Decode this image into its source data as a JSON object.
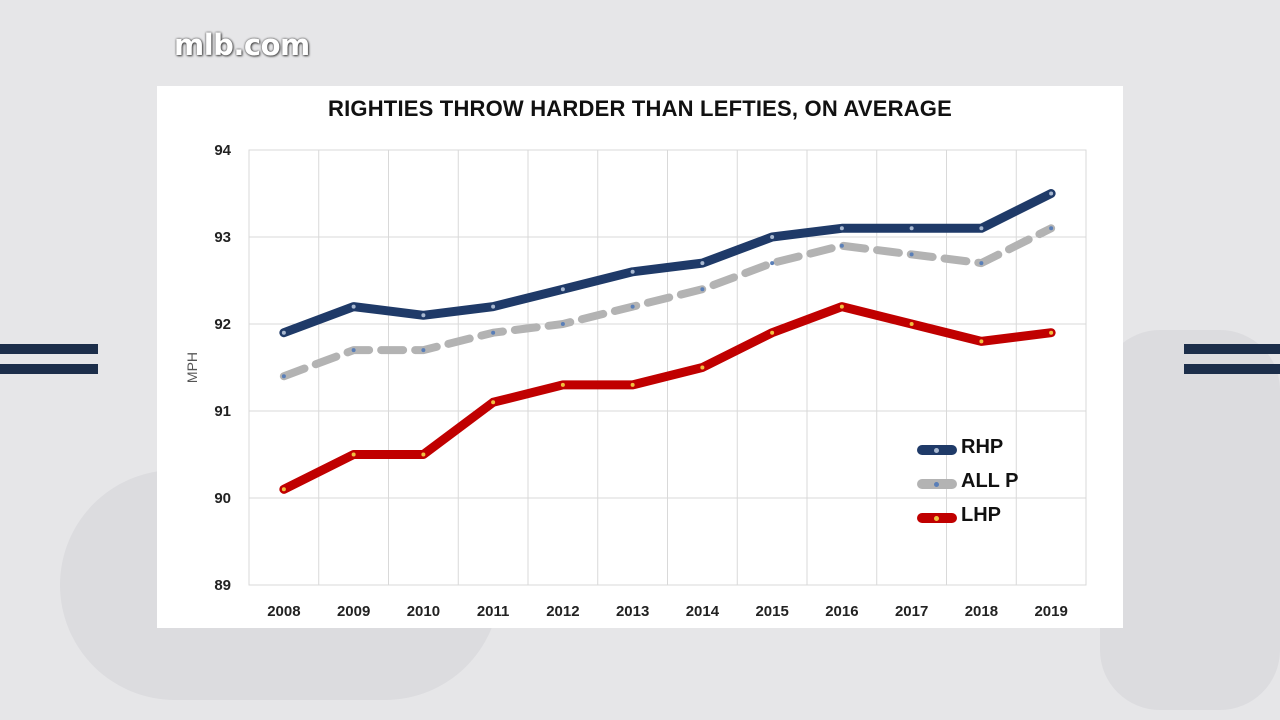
{
  "brand": {
    "logo_text": "mlb.com"
  },
  "colors": {
    "rhp": "#1f3a68",
    "all_p": "#b3b3b3",
    "lhp": "#c00000",
    "grid": "#d9d9d9"
  },
  "chart_data": {
    "type": "line",
    "title": "RIGHTIES THROW HARDER THAN LEFTIES, ON AVERAGE",
    "xlabel": "",
    "ylabel": "MPH",
    "ylim": [
      89,
      94
    ],
    "yticks": [
      89,
      90,
      91,
      92,
      93,
      94
    ],
    "grid": true,
    "legend_position": "right",
    "categories": [
      "2008",
      "2009",
      "2010",
      "2011",
      "2012",
      "2013",
      "2014",
      "2015",
      "2016",
      "2017",
      "2018",
      "2019"
    ],
    "series": [
      {
        "name": "RHP",
        "color": "#1f3a68",
        "dash": false,
        "values": [
          91.9,
          92.2,
          92.1,
          92.2,
          92.4,
          92.6,
          92.7,
          93.0,
          93.1,
          93.1,
          93.1,
          93.5
        ]
      },
      {
        "name": "ALL P",
        "color": "#b3b3b3",
        "dash": true,
        "values": [
          91.4,
          91.7,
          91.7,
          91.9,
          92.0,
          92.2,
          92.4,
          92.7,
          92.9,
          92.8,
          92.7,
          93.1
        ]
      },
      {
        "name": "LHP",
        "color": "#c00000",
        "dash": false,
        "values": [
          90.1,
          90.5,
          90.5,
          91.1,
          91.3,
          91.3,
          91.5,
          91.9,
          92.2,
          92.0,
          91.8,
          91.9
        ]
      }
    ]
  }
}
